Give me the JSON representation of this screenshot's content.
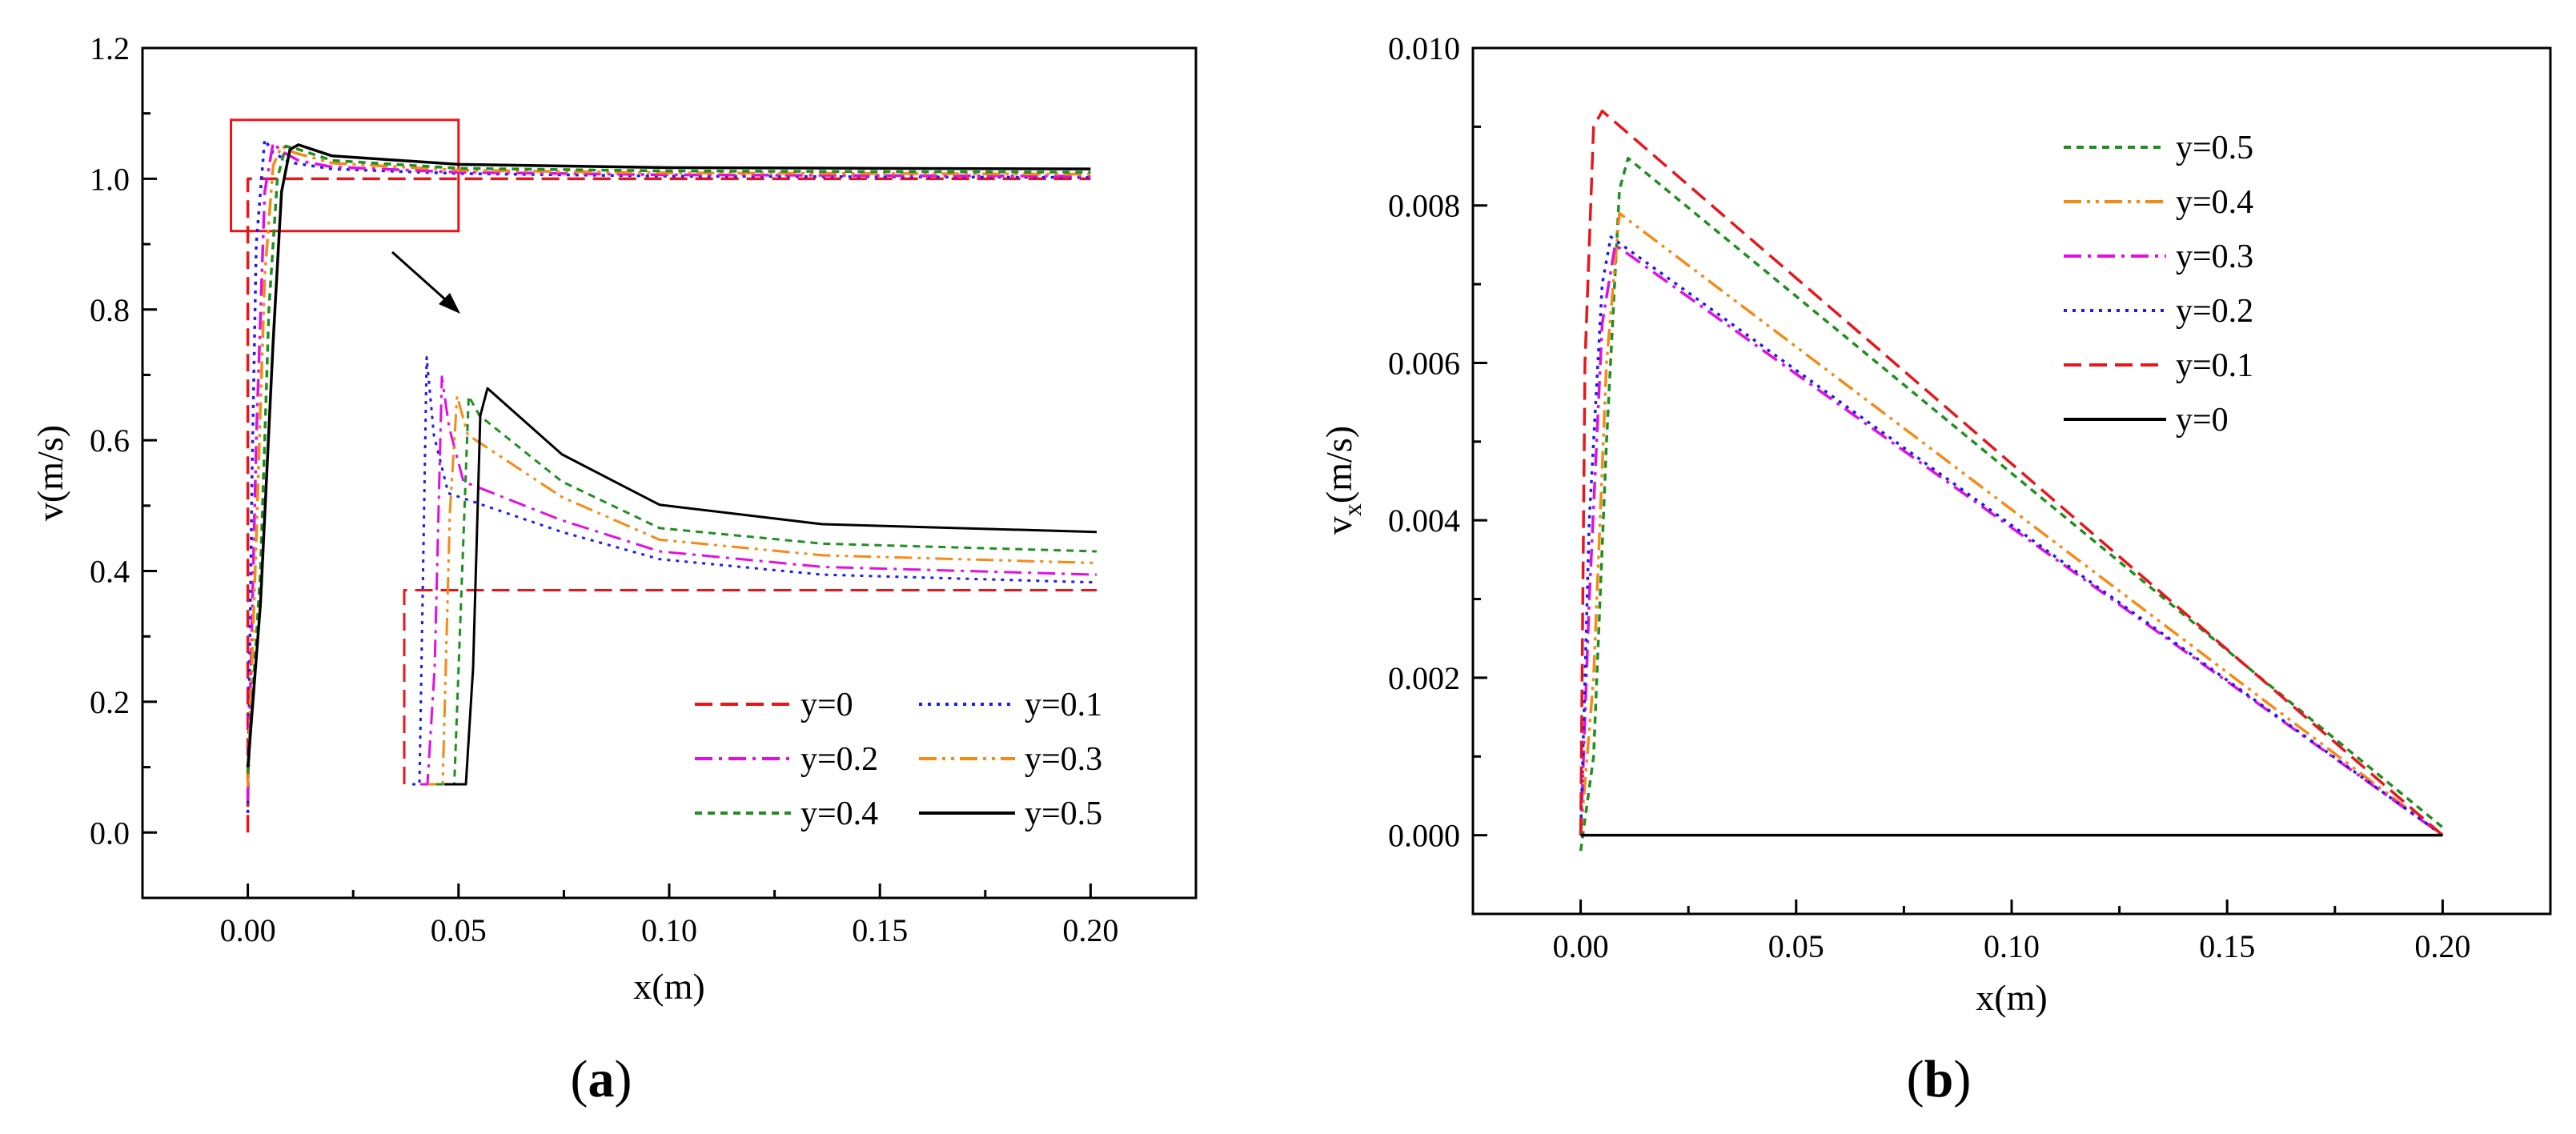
{
  "figure": {
    "panel_a_label": "a",
    "panel_b_label": "b"
  },
  "chart_data": [
    {
      "id": "a",
      "type": "line",
      "title": "",
      "xlabel": "x(m)",
      "ylabel": "v(m/s)",
      "xlim": [
        -0.025,
        0.225
      ],
      "ylim": [
        -0.1,
        1.2
      ],
      "xticks": [
        0.0,
        0.05,
        0.1,
        0.15,
        0.2
      ],
      "xtick_labels": [
        "0.00",
        "0.05",
        "0.10",
        "0.15",
        "0.20"
      ],
      "yticks": [
        0.0,
        0.2,
        0.4,
        0.6,
        0.8,
        1.0,
        1.2
      ],
      "ytick_labels": [
        "0.0",
        "0.2",
        "0.4",
        "0.6",
        "0.8",
        "1.0",
        "1.2"
      ],
      "legend": {
        "placement": "bottom-right",
        "columns": 2
      },
      "series": [
        {
          "name": "y=0",
          "color": "#e8161c",
          "dash": "dashed",
          "x": [
            0.0,
            0.0,
            0.0015,
            0.2
          ],
          "y": [
            0.0,
            1.0,
            1.0,
            1.0
          ]
        },
        {
          "name": "y=0.1",
          "color": "#1c1cf0",
          "dash": "dotted",
          "x": [
            0.0,
            0.001,
            0.002,
            0.004,
            0.006,
            0.01,
            0.02,
            0.05,
            0.1,
            0.2
          ],
          "y": [
            0.03,
            0.55,
            0.9,
            1.06,
            1.04,
            1.025,
            1.015,
            1.008,
            1.004,
            1.002
          ]
        },
        {
          "name": "y=0.2",
          "color": "#e010e0",
          "dash": "dashdot",
          "x": [
            0.0,
            0.002,
            0.004,
            0.006,
            0.008,
            0.012,
            0.02,
            0.05,
            0.1,
            0.2
          ],
          "y": [
            0.05,
            0.6,
            0.98,
            1.055,
            1.042,
            1.028,
            1.018,
            1.01,
            1.006,
            1.004
          ]
        },
        {
          "name": "y=0.3",
          "color": "#f58a14",
          "dash": "dashdotdot",
          "x": [
            0.0,
            0.002,
            0.004,
            0.006,
            0.008,
            0.011,
            0.02,
            0.05,
            0.1,
            0.2
          ],
          "y": [
            0.07,
            0.45,
            0.85,
            1.02,
            1.05,
            1.04,
            1.024,
            1.013,
            1.009,
            1.007
          ]
        },
        {
          "name": "y=0.4",
          "color": "#1f8f1f",
          "dash": "shortdash",
          "x": [
            0.0,
            0.003,
            0.005,
            0.007,
            0.009,
            0.012,
            0.02,
            0.05,
            0.1,
            0.2
          ],
          "y": [
            0.09,
            0.4,
            0.8,
            1.0,
            1.05,
            1.045,
            1.028,
            1.016,
            1.012,
            1.01
          ]
        },
        {
          "name": "y=0.5",
          "color": "#000000",
          "dash": "solid",
          "x": [
            0.0,
            0.003,
            0.006,
            0.008,
            0.01,
            0.012,
            0.02,
            0.05,
            0.1,
            0.2
          ],
          "y": [
            0.1,
            0.35,
            0.75,
            0.98,
            1.045,
            1.052,
            1.035,
            1.022,
            1.017,
            1.015
          ]
        }
      ],
      "zoom_box": {
        "x": [
          -0.004,
          0.05
        ],
        "y": [
          0.92,
          1.09
        ]
      }
    },
    {
      "id": "b",
      "type": "line",
      "title": "",
      "xlabel": "x(m)",
      "ylabel": "v",
      "ylabel_sub": "x",
      "ylabel_unit": "(m/s)",
      "xlim": [
        -0.025,
        0.225
      ],
      "ylim": [
        -0.001,
        0.01
      ],
      "xticks": [
        0.0,
        0.05,
        0.1,
        0.15,
        0.2
      ],
      "xtick_labels": [
        "0.00",
        "0.05",
        "0.10",
        "0.15",
        "0.20"
      ],
      "yticks": [
        0.0,
        0.002,
        0.004,
        0.006,
        0.008,
        0.01
      ],
      "ytick_labels": [
        "0.000",
        "0.002",
        "0.004",
        "0.006",
        "0.008",
        "0.010"
      ],
      "legend": {
        "placement": "top-center",
        "columns": 1
      },
      "series": [
        {
          "name": "y=0.5",
          "color": "#1f8f1f",
          "dash": "shortdash",
          "x": [
            0.0,
            0.003,
            0.006,
            0.009,
            0.011,
            0.2
          ],
          "y": [
            -0.0002,
            0.001,
            0.005,
            0.0082,
            0.0086,
            0.0001
          ]
        },
        {
          "name": "y=0.4",
          "color": "#f58a14",
          "dash": "dashdotdot",
          "x": [
            0.0,
            0.003,
            0.006,
            0.009,
            0.2
          ],
          "y": [
            0.0,
            0.002,
            0.006,
            0.0079,
            0.0
          ]
        },
        {
          "name": "y=0.3",
          "color": "#e010e0",
          "dash": "dashdot",
          "x": [
            0.0,
            0.002,
            0.005,
            0.008,
            0.2
          ],
          "y": [
            0.0,
            0.003,
            0.0065,
            0.0075,
            0.0
          ]
        },
        {
          "name": "y=0.2",
          "color": "#1c1cf0",
          "dash": "dotted",
          "x": [
            0.0,
            0.002,
            0.005,
            0.007,
            0.2
          ],
          "y": [
            0.0,
            0.004,
            0.007,
            0.0076,
            0.0
          ]
        },
        {
          "name": "y=0.1",
          "color": "#e8161c",
          "dash": "dashed",
          "x": [
            0.0,
            0.001,
            0.003,
            0.005,
            0.2
          ],
          "y": [
            0.0,
            0.006,
            0.009,
            0.0092,
            0.0
          ]
        },
        {
          "name": "y=0",
          "color": "#000000",
          "dash": "solid",
          "x": [
            0.0,
            0.2
          ],
          "y": [
            0.0,
            0.0
          ]
        }
      ]
    }
  ]
}
